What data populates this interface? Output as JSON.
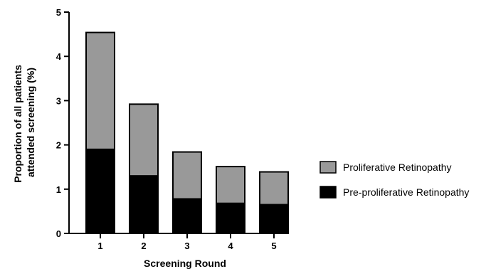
{
  "chart_data": {
    "type": "bar",
    "stacked": true,
    "categories": [
      "1",
      "2",
      "3",
      "4",
      "5"
    ],
    "series": [
      {
        "name": "Pre-proliferative Retinopathy",
        "color": "#000000",
        "values": [
          1.9,
          1.3,
          0.78,
          0.68,
          0.65
        ]
      },
      {
        "name": "Proliferative Retinopathy",
        "color": "#999999",
        "values": [
          2.64,
          1.62,
          1.06,
          0.83,
          0.74
        ]
      }
    ],
    "legend_order": [
      1,
      0
    ],
    "title": "",
    "xlabel": "Screening Round",
    "ylabel": [
      "Proportion of all patients",
      "attended screening (%)"
    ],
    "ylim": [
      0,
      5
    ],
    "yticks": [
      "0",
      "1",
      "2",
      "3",
      "4",
      "5"
    ],
    "grid": false,
    "legend_position": "right"
  }
}
